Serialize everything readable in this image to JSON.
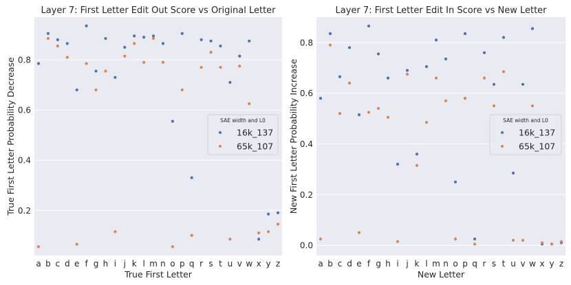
{
  "colors": {
    "axes_bg": "#eaeaf2",
    "grid": "#ffffff",
    "series_16k": "#4c72b0",
    "series_65k": "#dd8452",
    "text": "#262626"
  },
  "chart_data": [
    {
      "type": "scatter",
      "title": "Layer 7: First Letter Edit Out Score vs Original Letter",
      "xlabel": "True First Letter",
      "ylabel": "True First Letter Probability Decrease",
      "categories": [
        "a",
        "b",
        "c",
        "d",
        "e",
        "f",
        "g",
        "h",
        "i",
        "j",
        "k",
        "l",
        "m",
        "n",
        "o",
        "p",
        "q",
        "r",
        "s",
        "t",
        "u",
        "v",
        "w",
        "x",
        "y",
        "z"
      ],
      "ylim": [
        0.02,
        0.97
      ],
      "yticks": [
        0.2,
        0.4,
        0.6,
        0.8
      ],
      "ytick_labels": [
        "0.2",
        "0.4",
        "0.6",
        "0.8"
      ],
      "grid": true,
      "legend": {
        "title": "SAE width and L0",
        "placement": "right"
      },
      "series": [
        {
          "name": "16k_137",
          "color": "#4c72b0",
          "values": [
            0.785,
            0.905,
            0.88,
            0.865,
            0.68,
            0.935,
            0.755,
            0.885,
            0.73,
            0.85,
            0.895,
            0.89,
            0.895,
            0.865,
            0.555,
            0.905,
            0.33,
            0.88,
            0.875,
            0.855,
            0.71,
            0.815,
            0.875,
            0.085,
            0.185,
            0.19
          ]
        },
        {
          "name": "65k_107",
          "color": "#dd8452",
          "values": [
            0.055,
            0.885,
            0.855,
            0.81,
            0.065,
            0.785,
            0.68,
            0.755,
            0.115,
            0.815,
            0.865,
            0.79,
            0.885,
            0.79,
            0.055,
            0.68,
            0.1,
            0.77,
            0.83,
            0.77,
            0.085,
            0.775,
            0.625,
            0.11,
            0.115,
            0.145
          ]
        }
      ]
    },
    {
      "type": "scatter",
      "title": "Layer 7: First Letter Edit In Score vs New Letter",
      "xlabel": "New Letter",
      "ylabel": "New First Letter Probability Increase",
      "categories": [
        "a",
        "b",
        "c",
        "d",
        "e",
        "f",
        "g",
        "h",
        "i",
        "j",
        "k",
        "l",
        "m",
        "n",
        "o",
        "p",
        "q",
        "r",
        "s",
        "t",
        "u",
        "v",
        "w",
        "x",
        "y",
        "z"
      ],
      "ylim": [
        -0.04,
        0.9
      ],
      "yticks": [
        0.0,
        0.2,
        0.4,
        0.6,
        0.8
      ],
      "ytick_labels": [
        "0.0",
        "0.2",
        "0.4",
        "0.6",
        "0.8"
      ],
      "grid": true,
      "legend": {
        "title": "SAE width and L0",
        "placement": "right"
      },
      "series": [
        {
          "name": "16k_137",
          "color": "#4c72b0",
          "values": [
            0.58,
            0.835,
            0.665,
            0.78,
            0.515,
            0.865,
            0.755,
            0.66,
            0.32,
            0.69,
            0.36,
            0.705,
            0.81,
            0.735,
            0.25,
            0.835,
            0.025,
            0.76,
            0.635,
            0.82,
            0.285,
            0.635,
            0.855,
            0.005,
            0.005,
            0.01
          ]
        },
        {
          "name": "65k_107",
          "color": "#dd8452",
          "values": [
            0.025,
            0.79,
            0.52,
            0.64,
            0.05,
            0.525,
            0.54,
            0.505,
            0.015,
            0.675,
            0.315,
            0.485,
            0.66,
            0.57,
            0.025,
            0.58,
            0.005,
            0.66,
            0.55,
            0.685,
            0.02,
            0.02,
            0.55,
            0.01,
            0.005,
            0.015
          ]
        }
      ]
    }
  ]
}
